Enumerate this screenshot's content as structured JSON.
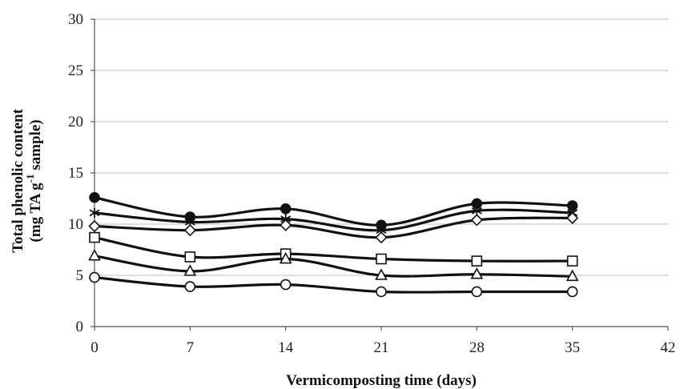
{
  "chart_data": {
    "type": "line",
    "xlabel": "Vermicomposting time (days)",
    "ylabel": [
      "Total phenolic content",
      "(mg TA g",
      "-1",
      " sample)"
    ],
    "xlim": [
      0,
      42
    ],
    "ylim": [
      0,
      30
    ],
    "xticks": [
      0,
      7,
      14,
      21,
      28,
      35,
      42
    ],
    "yticks": [
      0,
      5,
      10,
      15,
      20,
      25,
      30
    ],
    "grid": "horizontal",
    "legend": "none",
    "x": [
      0,
      7,
      14,
      21,
      28,
      35
    ],
    "series": [
      {
        "marker": "filled-circle",
        "values": [
          12.6,
          10.7,
          11.5,
          9.9,
          12.0,
          11.8
        ]
      },
      {
        "marker": "star",
        "values": [
          11.1,
          10.2,
          10.5,
          9.4,
          11.3,
          11.1
        ]
      },
      {
        "marker": "diamond",
        "values": [
          9.8,
          9.4,
          9.9,
          8.7,
          10.4,
          10.6
        ]
      },
      {
        "marker": "square",
        "values": [
          8.7,
          6.8,
          7.1,
          6.6,
          6.4,
          6.4
        ]
      },
      {
        "marker": "triangle",
        "values": [
          6.9,
          5.4,
          6.6,
          5.0,
          5.1,
          4.9
        ]
      },
      {
        "marker": "circle",
        "values": [
          4.8,
          3.9,
          4.1,
          3.4,
          3.4,
          3.4
        ]
      }
    ]
  }
}
